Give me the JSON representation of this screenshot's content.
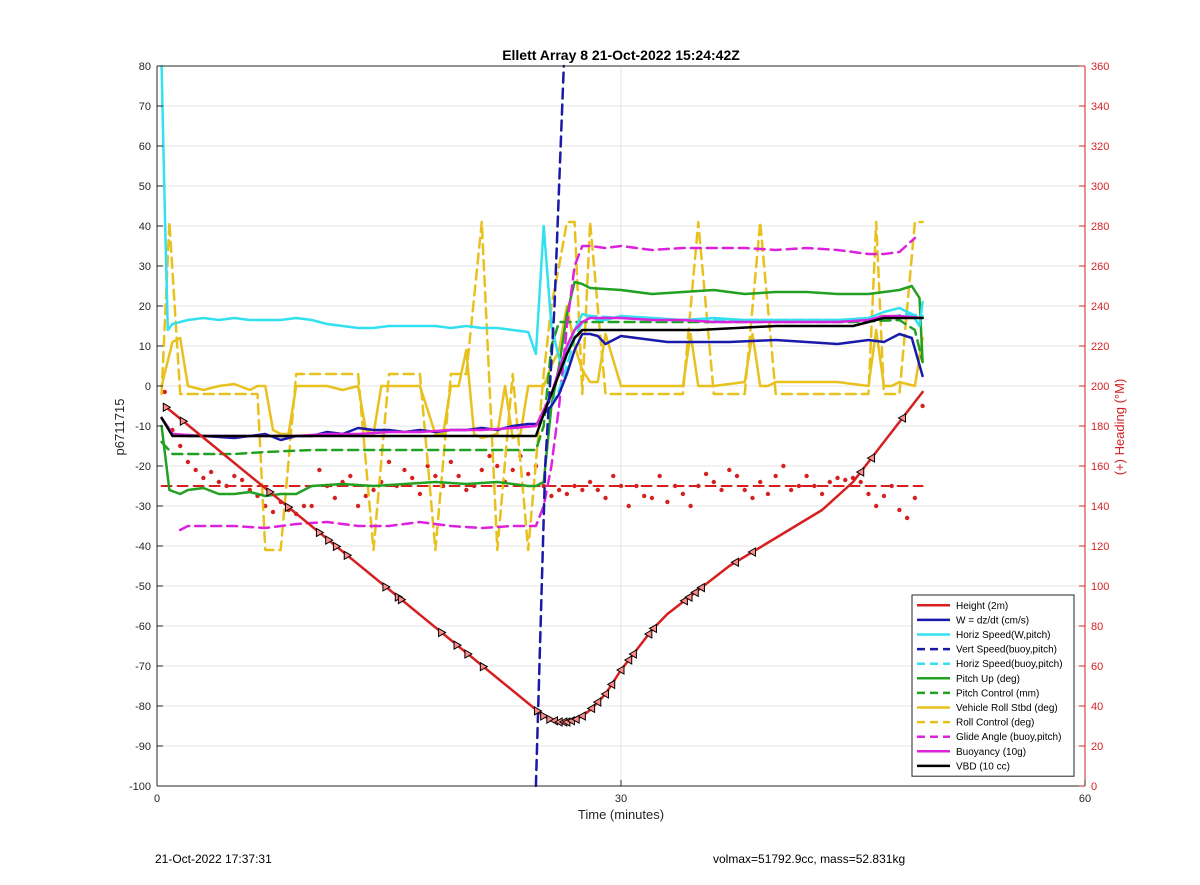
{
  "chart_data": {
    "type": "line",
    "title": "Ellett Array 8 21-Oct-2022 15:24:42Z",
    "xlabel": "Time (minutes)",
    "ylabel": "p6711715",
    "y2label": "(+) Heading (°M)",
    "xlim": [
      0,
      60
    ],
    "ylim": [
      -100,
      80
    ],
    "y2lim": [
      0,
      360
    ],
    "xticks": [
      0,
      30,
      60
    ],
    "yticks": [
      -100,
      -90,
      -80,
      -70,
      -60,
      -50,
      -40,
      -30,
      -20,
      -10,
      0,
      10,
      20,
      30,
      40,
      50,
      60,
      70,
      80
    ],
    "y2ticks": [
      0,
      20,
      40,
      60,
      80,
      100,
      120,
      140,
      160,
      180,
      200,
      220,
      240,
      260,
      280,
      300,
      320,
      340,
      360
    ],
    "grid": true,
    "legend_position": "bottom-right",
    "colors": {
      "height": "#d62020",
      "w": "#1a1aaa",
      "horiz": "#33e0f0",
      "pitch": "#22a022",
      "roll": "#e8c11e",
      "glide": "#dd22dd",
      "buoy": "#dd22dd",
      "vbd": "#000000",
      "heading": "#d62020",
      "right_axis": "#d62020"
    },
    "series": [
      {
        "key": "height",
        "name": "Height (2m)",
        "style": "solid",
        "color": "#d62020",
        "x": [
          0.5,
          25,
          25.5,
          26,
          26.5,
          27,
          27.5,
          28,
          28.5,
          29,
          30,
          31,
          32,
          33,
          35,
          37,
          40,
          43,
          45,
          47,
          49.5
        ],
        "y": [
          -5,
          -82.5,
          -83.5,
          -84,
          -84,
          -83.5,
          -82.5,
          -81,
          -79,
          -77,
          -71,
          -66,
          -61,
          -57,
          -51,
          -45,
          -38,
          -31,
          -24,
          -14,
          -1.5
        ]
      },
      {
        "key": "w",
        "name": "W = dz/dt (cm/s)",
        "style": "solid",
        "color": "#1a1aaa",
        "x": [
          0.3,
          1,
          2,
          3,
          5,
          7,
          8,
          9,
          10,
          11,
          12,
          13,
          14,
          15,
          16,
          17,
          18,
          19,
          20,
          21,
          22,
          23,
          24,
          24.6,
          25,
          25.5,
          26,
          26.5,
          27,
          27.5,
          28,
          28.5,
          29,
          30,
          31,
          33,
          35,
          37,
          40,
          42,
          44,
          46,
          47,
          48,
          48.8,
          49.5
        ],
        "y": [
          -8,
          -12,
          -12.5,
          -12.5,
          -13,
          -12,
          -13.5,
          -12.5,
          -12.5,
          -11.5,
          -12,
          -10.5,
          -11,
          -11,
          -11.5,
          -11,
          -11.5,
          -11,
          -11,
          -10.5,
          -11,
          -10,
          -9.5,
          -9.5,
          -7,
          -5,
          -2,
          3,
          9,
          13,
          13,
          12.5,
          10.5,
          12.5,
          12,
          11,
          11,
          11,
          11.5,
          11,
          10.5,
          11.5,
          11,
          13,
          12,
          2.5
        ]
      },
      {
        "key": "horiz_w",
        "name": "Horiz Speed(W,pitch)",
        "style": "solid",
        "color": "#33e0f0",
        "x": [
          0.3,
          0.5,
          0.7,
          1,
          2,
          3,
          4,
          5,
          6,
          7,
          8,
          9,
          10,
          11,
          12,
          13,
          14,
          15,
          16,
          17,
          18,
          19,
          20,
          21,
          22,
          23,
          24,
          24.5,
          25,
          25.5,
          26,
          26.3,
          26.6,
          27,
          27.5,
          28,
          28.5,
          29,
          30,
          32,
          34,
          36,
          38,
          40,
          42,
          44,
          46,
          47,
          48,
          48.8,
          49.3,
          49.5
        ],
        "y": [
          80,
          45,
          14,
          15.5,
          16.5,
          17,
          16.5,
          17,
          16.5,
          16.5,
          16.5,
          17,
          16.5,
          15.5,
          15,
          14.5,
          14.5,
          15,
          15,
          15,
          15,
          14.5,
          15,
          14.5,
          14.5,
          14,
          13.5,
          8,
          40,
          15,
          7,
          5,
          10,
          14,
          18,
          17.5,
          16.5,
          16.5,
          17.5,
          17,
          16.5,
          17,
          16.5,
          16.5,
          16.5,
          16.5,
          17,
          18.5,
          19.5,
          18,
          15,
          21
        ]
      },
      {
        "key": "vert_buoy",
        "name": "Vert Speed(buoy,pitch)",
        "style": "dash",
        "color": "#1a1aaa",
        "x": [
          24.5,
          24.8,
          25.1,
          25.4,
          25.7,
          26,
          26.3
        ],
        "y": [
          -100,
          -60,
          -20,
          0,
          20,
          50,
          80
        ]
      },
      {
        "key": "horiz_buoy",
        "name": "Horiz Speed(buoy,pitch)",
        "style": "dash",
        "color": "#33e0f0",
        "x": [
          25.5,
          26,
          26.5,
          27,
          27.5,
          28,
          30,
          32,
          35,
          38,
          40,
          43,
          45,
          47,
          48.5,
          49.5
        ],
        "y": [
          -5,
          -1,
          5,
          12,
          16,
          17.5,
          17,
          16.5,
          16.5,
          16.5,
          16.5,
          16.5,
          16.5,
          17,
          18,
          17.5
        ]
      },
      {
        "key": "pitch_up",
        "name": "Pitch Up (deg)",
        "style": "solid",
        "color": "#22a022",
        "x": [
          0.3,
          0.8,
          1.5,
          2,
          3,
          4,
          5,
          6,
          7,
          8,
          9,
          10,
          12,
          14,
          16,
          18,
          20,
          22,
          24,
          24.5,
          25,
          25.5,
          26,
          26.5,
          27,
          27.5,
          28,
          30,
          32,
          34,
          36,
          38,
          40,
          42,
          44,
          46,
          47,
          48,
          48.8,
          49.3,
          49.5
        ],
        "y": [
          -10,
          -26,
          -27,
          -26,
          -25.5,
          -27,
          -27,
          -26.5,
          -27.5,
          -27,
          -27,
          -25,
          -24.5,
          -25,
          -24.5,
          -24,
          -24.5,
          -24,
          -25,
          -25,
          -24,
          -5,
          5,
          18,
          26,
          25.5,
          24.5,
          24,
          23,
          23.5,
          24,
          23,
          23.5,
          23.5,
          23,
          23,
          23.5,
          24,
          25,
          22,
          6
        ]
      },
      {
        "key": "pitch_ctrl",
        "name": "Pitch Control (mm)",
        "style": "dash",
        "color": "#22a022",
        "x": [
          0.3,
          1,
          5,
          7,
          10,
          14,
          18,
          22,
          24.5,
          25,
          25.5,
          26,
          30,
          35,
          40,
          45,
          48,
          49,
          49.5
        ],
        "y": [
          -14,
          -17,
          -17,
          -16.5,
          -16,
          -16,
          -16,
          -16,
          -16,
          -10,
          10,
          16,
          16,
          16,
          16,
          16,
          16.5,
          14,
          6
        ]
      },
      {
        "key": "roll",
        "name": "Vehicle Roll Stbd (deg)",
        "style": "solid",
        "color": "#e8c11e",
        "x": [
          0.3,
          1,
          1.5,
          2,
          3,
          4,
          5,
          6,
          6.5,
          7,
          7.5,
          8,
          8.5,
          9,
          10,
          11,
          12,
          13,
          13.5,
          14,
          14.5,
          15,
          16,
          17,
          18,
          18.5,
          19,
          19.5,
          20,
          20.5,
          21,
          22,
          22.5,
          23,
          23.5,
          24,
          24.5,
          25,
          25.5,
          26,
          26.5,
          27,
          27.5,
          28,
          28.5,
          29,
          30,
          32,
          34,
          34.5,
          35,
          35.5,
          36,
          38,
          38.5,
          39,
          39.5,
          40,
          42,
          44,
          46,
          46.5,
          47,
          47.5,
          48,
          49,
          49.5
        ],
        "y": [
          0,
          11,
          12,
          0,
          -1,
          0,
          0.5,
          -1,
          0,
          0,
          -11,
          -12,
          -12,
          0,
          0,
          0,
          -1,
          0,
          -11,
          -12,
          0,
          0,
          0,
          0,
          -12,
          -12,
          0,
          0,
          9,
          -12,
          -13,
          -12,
          0,
          -13,
          -12,
          0,
          0,
          0,
          5,
          9,
          20,
          10,
          4,
          1,
          1,
          13,
          0,
          0,
          0,
          13,
          0,
          0,
          0,
          1,
          13,
          0,
          0,
          1,
          1,
          1,
          0,
          14,
          0,
          0,
          1,
          0,
          12
        ]
      },
      {
        "key": "roll_ctrl",
        "name": "Roll Control (deg)",
        "style": "dash",
        "color": "#e8c11e",
        "x": [
          0.3,
          0.8,
          1.5,
          2,
          3,
          5,
          6.5,
          7,
          8,
          9,
          10,
          12,
          13,
          14,
          15,
          16,
          17,
          18,
          19,
          20,
          21,
          22,
          23,
          24,
          25,
          25.5,
          26,
          26.5,
          27,
          27.5,
          28,
          29,
          30,
          32,
          34,
          35,
          36,
          38,
          39,
          40,
          42,
          44,
          46,
          46.5,
          47,
          47.5,
          48,
          49,
          49.5
        ],
        "y": [
          -2,
          41,
          -2,
          -2,
          -2,
          -2,
          -2,
          -41,
          -41,
          3,
          3,
          3,
          3,
          -41,
          3,
          3,
          3,
          -41,
          3,
          3,
          41,
          -41,
          3,
          -41,
          3,
          20,
          30,
          41,
          41,
          -2,
          41,
          -2,
          -2,
          -2,
          -2,
          41,
          -2,
          -2,
          41,
          -2,
          -2,
          -2,
          -2,
          41,
          -2,
          -2,
          -2,
          41,
          41
        ]
      },
      {
        "key": "glide",
        "name": "Glide Angle (buoy,pitch)",
        "style": "dash",
        "color": "#dd22dd",
        "x": [
          1.5,
          2,
          3,
          5,
          7,
          9,
          11,
          13,
          15,
          17,
          19,
          21,
          23,
          24.5,
          25,
          25.5,
          26,
          26.5,
          27,
          27.5,
          28,
          29,
          30,
          32,
          34,
          36,
          38,
          40,
          42,
          44,
          46,
          47,
          48,
          49
        ],
        "y": [
          -36,
          -35,
          -35,
          -35,
          -35.5,
          -34.5,
          -34,
          -35,
          -35,
          -34,
          -35,
          -35.5,
          -35,
          -35,
          -30,
          -20,
          -5,
          15,
          30,
          35,
          35,
          34.5,
          35,
          34,
          34.5,
          34.5,
          34.5,
          34,
          34.5,
          34,
          33,
          33,
          33.5,
          37
        ]
      },
      {
        "key": "buoyancy",
        "name": "Buoyancy (10g)",
        "style": "solid",
        "color": "#dd22dd",
        "x": [
          0.3,
          1,
          3,
          5,
          7,
          9,
          11,
          13,
          15,
          17,
          19,
          21,
          23,
          24.5,
          25,
          25.5,
          26,
          26.5,
          27,
          27.5,
          28,
          30,
          32,
          34,
          36,
          38,
          40,
          42,
          44,
          46,
          47,
          48,
          49.5
        ],
        "y": [
          -8,
          -12,
          -12.5,
          -12.5,
          -12.5,
          -12.5,
          -12,
          -12,
          -11.5,
          -11.5,
          -11,
          -11,
          -10.5,
          -10,
          -6,
          -2,
          4,
          10,
          14,
          16,
          17,
          17,
          16.5,
          16.5,
          16,
          16,
          16,
          16,
          16,
          16.5,
          17.5,
          17.5,
          17
        ]
      },
      {
        "key": "vbd",
        "name": "VBD (10 cc)",
        "style": "solid",
        "color": "#000000",
        "x": [
          0.3,
          1,
          2,
          5,
          8,
          10,
          15,
          20,
          24.5,
          25,
          25.5,
          26,
          26.5,
          27,
          27.5,
          28,
          30,
          35,
          40,
          45,
          47,
          48,
          49.5
        ],
        "y": [
          -8,
          -12.5,
          -12.5,
          -12.5,
          -12.5,
          -12.5,
          -12.5,
          -12.5,
          -12.5,
          -7,
          -2,
          3,
          8,
          12,
          14,
          14,
          14,
          14,
          15,
          15,
          17,
          17,
          17
        ]
      }
    ],
    "heading_line": {
      "style": "dash",
      "color": "#d62020",
      "x": [
        0.3,
        49.5
      ],
      "y": [
        150,
        150
      ]
    },
    "heading_points": {
      "x": [
        0.5,
        1,
        1.5,
        2,
        2.5,
        3,
        3.5,
        4,
        4.5,
        5,
        5.5,
        6,
        6.5,
        7,
        7.5,
        8,
        8.5,
        9,
        9.5,
        10,
        10.5,
        11,
        11.5,
        12,
        12.5,
        13,
        13.5,
        14,
        14.5,
        15,
        15.5,
        16,
        16.5,
        17,
        17.5,
        18,
        18.5,
        19,
        19.5,
        20,
        20.5,
        21,
        21.5,
        22,
        22.5,
        23,
        23.5,
        24,
        24.5,
        25,
        25.5,
        26,
        26.5,
        27,
        27.5,
        28,
        28.5,
        29,
        29.5,
        30,
        30.5,
        31,
        31.5,
        32,
        32.5,
        33,
        33.5,
        34,
        34.5,
        35,
        35.5,
        36,
        36.5,
        37,
        37.5,
        38,
        38.5,
        39,
        39.5,
        40,
        40.5,
        41,
        41.5,
        42,
        42.5,
        43,
        43.5,
        44,
        44.5,
        45,
        45.5,
        46,
        46.5,
        47,
        47.5,
        48,
        48.5,
        49,
        49.5
      ],
      "y": [
        197,
        178,
        170,
        162,
        158,
        154,
        157,
        152,
        150,
        155,
        153,
        148,
        145,
        140,
        137,
        142,
        138,
        136,
        140,
        140,
        158,
        150,
        144,
        152,
        155,
        140,
        145,
        148,
        152,
        162,
        150,
        158,
        154,
        146,
        160,
        155,
        150,
        162,
        155,
        148,
        150,
        158,
        165,
        160,
        152,
        158,
        165,
        156,
        160,
        150,
        145,
        148,
        146,
        150,
        148,
        152,
        148,
        144,
        155,
        150,
        140,
        150,
        145,
        144,
        155,
        142,
        150,
        146,
        140,
        150,
        156,
        152,
        148,
        158,
        155,
        148,
        144,
        152,
        146,
        155,
        160,
        148,
        150,
        155,
        150,
        146,
        152,
        154,
        153,
        154,
        152,
        146,
        140,
        145,
        150,
        138,
        134,
        144,
        190
      ]
    },
    "height_markers_x": [
      0.6,
      1.7,
      7.3,
      8.5,
      10.5,
      11.1,
      11.6,
      12.3,
      14.8,
      15.6,
      15.8,
      18.4,
      19.4,
      20.1,
      21.1,
      24.6,
      25.0,
      25.4,
      25.7,
      26.0,
      26.3,
      26.5,
      26.8,
      27.1,
      27.5,
      28.1,
      28.5,
      29.0,
      29.4,
      30.0,
      30.5,
      30.8,
      31.8,
      32.1,
      34.1,
      34.4,
      34.8,
      35.2,
      37.4,
      38.5,
      45.5,
      46.2,
      48.2
    ]
  },
  "footer": {
    "left": "21-Oct-2022 17:37:31",
    "right": "volmax=51792.9cc, mass=52.831kg"
  }
}
